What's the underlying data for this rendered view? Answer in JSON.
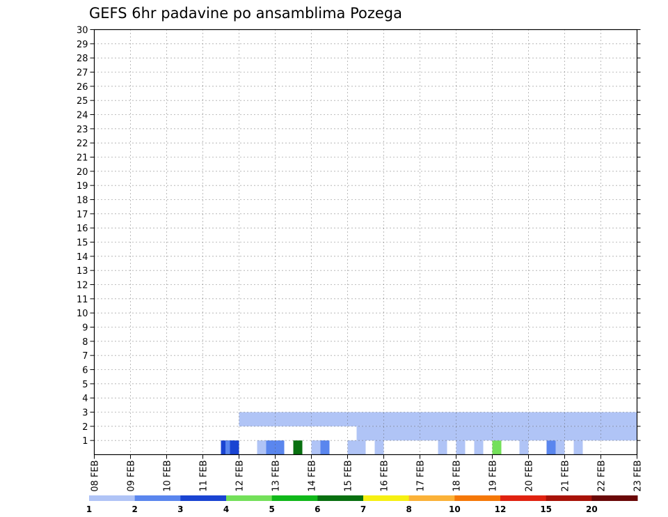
{
  "chart_data": {
    "type": "heatmap",
    "title": "GEFS 6hr padavine po ansamblima Pozega",
    "xlabel": "",
    "ylabel": "",
    "x_ticks": [
      "08 FEB",
      "09 FEB",
      "10 FEB",
      "11 FEB",
      "12 FEB",
      "13 FEB",
      "14 FEB",
      "15 FEB",
      "16 FEB",
      "17 FEB",
      "18 FEB",
      "19 FEB",
      "20 FEB",
      "21 FEB",
      "22 FEB",
      "23 FEB"
    ],
    "y_ticks": [
      1,
      2,
      3,
      4,
      5,
      6,
      7,
      8,
      9,
      10,
      11,
      12,
      13,
      14,
      15,
      16,
      17,
      18,
      19,
      20,
      21,
      22,
      23,
      24,
      25,
      26,
      27,
      28,
      29,
      30
    ],
    "xlim": [
      0,
      60
    ],
    "ylim": [
      0,
      30
    ],
    "grid": true,
    "x_unit": "6-hour step from 08 FEB 00 UTC",
    "colorbar": {
      "labels": [
        "1",
        "2",
        "3",
        "4",
        "5",
        "6",
        "7",
        "8",
        "10",
        "12",
        "15",
        "20"
      ],
      "colors": [
        "#b0c4f6",
        "#5a86ee",
        "#1a44d2",
        "#74e05a",
        "#10b81a",
        "#087010",
        "#f6f012",
        "#fbb238",
        "#f57808",
        "#e02210",
        "#a81208",
        "#6a0808"
      ]
    },
    "cells": [
      [
        14,
        0,
        1,
        2
      ],
      [
        14.5,
        0,
        1,
        1
      ],
      [
        15,
        0,
        1,
        2
      ],
      [
        18,
        0,
        1,
        0
      ],
      [
        19,
        0,
        1,
        1
      ],
      [
        20,
        0,
        1,
        1
      ],
      [
        22,
        0,
        1,
        5
      ],
      [
        24,
        0,
        1,
        0
      ],
      [
        24.5,
        0,
        1,
        0
      ],
      [
        25,
        0,
        1,
        1
      ],
      [
        28,
        0,
        1,
        0
      ],
      [
        29,
        0,
        1,
        0
      ],
      [
        31,
        0,
        1,
        0
      ],
      [
        38,
        0,
        1,
        0
      ],
      [
        40,
        0,
        1,
        0
      ],
      [
        42,
        0,
        1,
        0
      ],
      [
        44,
        0,
        1,
        3
      ],
      [
        47,
        0,
        1,
        0
      ],
      [
        50,
        0,
        1,
        1
      ],
      [
        51,
        0,
        1,
        0
      ],
      [
        53,
        0,
        1,
        0
      ],
      [
        29,
        1,
        1,
        0
      ],
      [
        30,
        1,
        1,
        0
      ],
      [
        31,
        1,
        1,
        0
      ],
      [
        32,
        1,
        1,
        0
      ],
      [
        33,
        1,
        1,
        0
      ],
      [
        34,
        1,
        1,
        0
      ],
      [
        35,
        1,
        1,
        0
      ],
      [
        36,
        1,
        1,
        0
      ],
      [
        37,
        1,
        1,
        0
      ],
      [
        38,
        1,
        1,
        0
      ],
      [
        39,
        1,
        1,
        0
      ],
      [
        40,
        1,
        1,
        0
      ],
      [
        41,
        1,
        1,
        0
      ],
      [
        42,
        1,
        1,
        0
      ],
      [
        43,
        1,
        1,
        0
      ],
      [
        44,
        1,
        1,
        0
      ],
      [
        45,
        1,
        1,
        0
      ],
      [
        46,
        1,
        1,
        0
      ],
      [
        47,
        1,
        1,
        0
      ],
      [
        48,
        1,
        1,
        0
      ],
      [
        49,
        1,
        1,
        0
      ],
      [
        50,
        1,
        1,
        0
      ],
      [
        51,
        1,
        1,
        0
      ],
      [
        52,
        1,
        1,
        0
      ],
      [
        53,
        1,
        1,
        0
      ],
      [
        54,
        1,
        1,
        0
      ],
      [
        55,
        1,
        1,
        0
      ],
      [
        56,
        1,
        1,
        0
      ],
      [
        57,
        1,
        1,
        0
      ],
      [
        58,
        1,
        1,
        0
      ],
      [
        59,
        1,
        1,
        0
      ],
      [
        16,
        2,
        1,
        0
      ],
      [
        17,
        2,
        1,
        0
      ],
      [
        18,
        2,
        1,
        0
      ],
      [
        19,
        2,
        1,
        0
      ],
      [
        20,
        2,
        1,
        0
      ],
      [
        21,
        2,
        1,
        0
      ],
      [
        22,
        2,
        1,
        0
      ],
      [
        23,
        2,
        1,
        0
      ],
      [
        24,
        2,
        1,
        0
      ],
      [
        25,
        2,
        1,
        0
      ],
      [
        26,
        2,
        1,
        0
      ],
      [
        27,
        2,
        1,
        0
      ],
      [
        28,
        2,
        1,
        0
      ],
      [
        29,
        2,
        1,
        0
      ],
      [
        30,
        2,
        1,
        0
      ],
      [
        31,
        2,
        1,
        0
      ],
      [
        32,
        2,
        1,
        0
      ],
      [
        33,
        2,
        1,
        0
      ],
      [
        34,
        2,
        1,
        0
      ],
      [
        35,
        2,
        1,
        0
      ],
      [
        36,
        2,
        1,
        0
      ],
      [
        37,
        2,
        1,
        0
      ],
      [
        38,
        2,
        1,
        0
      ],
      [
        39,
        2,
        1,
        0
      ],
      [
        40,
        2,
        1,
        0
      ],
      [
        41,
        2,
        1,
        0
      ],
      [
        42,
        2,
        1,
        0
      ],
      [
        43,
        2,
        1,
        0
      ],
      [
        44,
        2,
        1,
        0
      ],
      [
        45,
        2,
        1,
        0
      ],
      [
        46,
        2,
        1,
        0
      ],
      [
        47,
        2,
        1,
        0
      ],
      [
        48,
        2,
        1,
        0
      ],
      [
        49,
        2,
        1,
        0
      ],
      [
        50,
        2,
        1,
        0
      ],
      [
        51,
        2,
        1,
        0
      ],
      [
        52,
        2,
        1,
        0
      ],
      [
        53,
        2,
        1,
        0
      ],
      [
        54,
        2,
        1,
        0
      ],
      [
        55,
        2,
        1,
        0
      ],
      [
        56,
        2,
        1,
        0
      ],
      [
        57,
        2,
        1,
        0
      ],
      [
        58,
        2,
        1,
        0
      ],
      [
        59,
        2,
        1,
        0
      ]
    ]
  }
}
